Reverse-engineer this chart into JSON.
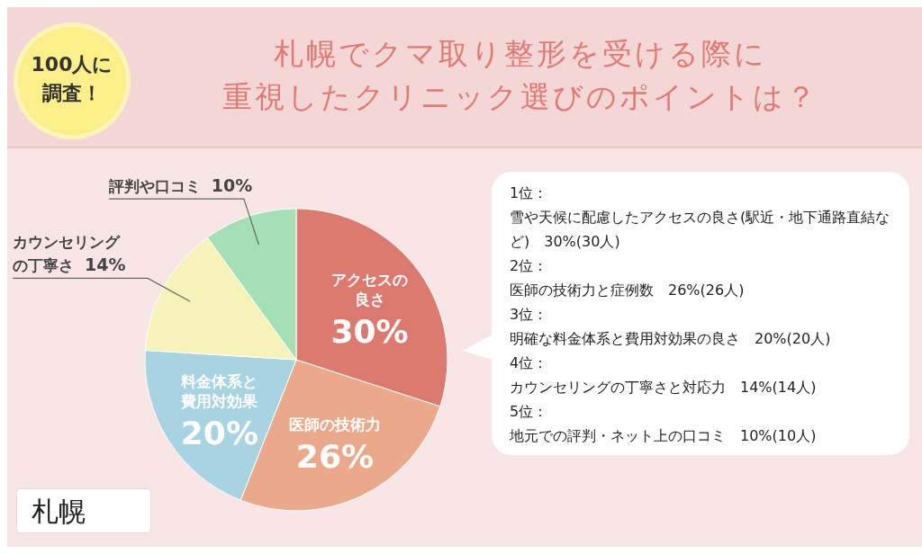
{
  "chart_data": {
    "type": "pie",
    "title": "札幌でクマ取り整形を受ける際に重視したクリニック選びのポイントは？",
    "categories": [
      "アクセスの良さ",
      "医師の技術力",
      "料金体系と費用対効果",
      "カウンセリングの丁寧さ",
      "評判や口コミ"
    ],
    "values": [
      30,
      26,
      20,
      14,
      10
    ],
    "value_labels": [
      "30%",
      "26%",
      "20%",
      "14%",
      "10%"
    ],
    "colors": [
      "#dc7a70",
      "#eaa98a",
      "#a8d3e0",
      "#f5f3b8",
      "#a5dfb5"
    ],
    "annotations": [
      "100人に調査！",
      "札幌",
      "1位：",
      "雪や天候に配慮したアクセスの良さ(駅近・地下通路直結など)　30%(30人)",
      "2位：",
      "医師の技術力と症例数　26%(26人)",
      "3位：",
      "明確な料金体系と費用対効果の良さ　20%(20人)",
      "4位：",
      "カウンセリングの丁寧さと対応力　14%(14人)",
      "5位：",
      "地元での評判・ネット上の口コミ　10%(10人)"
    ]
  }
}
